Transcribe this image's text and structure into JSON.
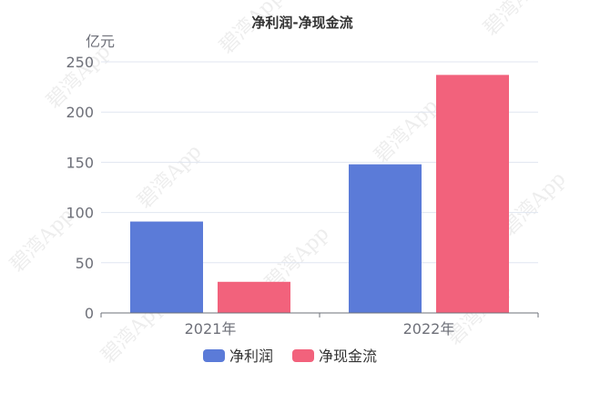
{
  "watermark": "碧湾App",
  "chart_data": {
    "type": "bar",
    "title": "净利润-净现金流",
    "y_unit": "亿元",
    "categories": [
      "2021年",
      "2022年"
    ],
    "series": [
      {
        "name": "净利润",
        "values": [
          91,
          148
        ],
        "color": "#5b7bd8"
      },
      {
        "name": "净现金流",
        "values": [
          31,
          237
        ],
        "color": "#f2627c"
      }
    ],
    "ylim": [
      0,
      250
    ],
    "yticks": [
      0,
      50,
      100,
      150,
      200,
      250
    ],
    "grid": true,
    "legend": "bottom-center"
  }
}
